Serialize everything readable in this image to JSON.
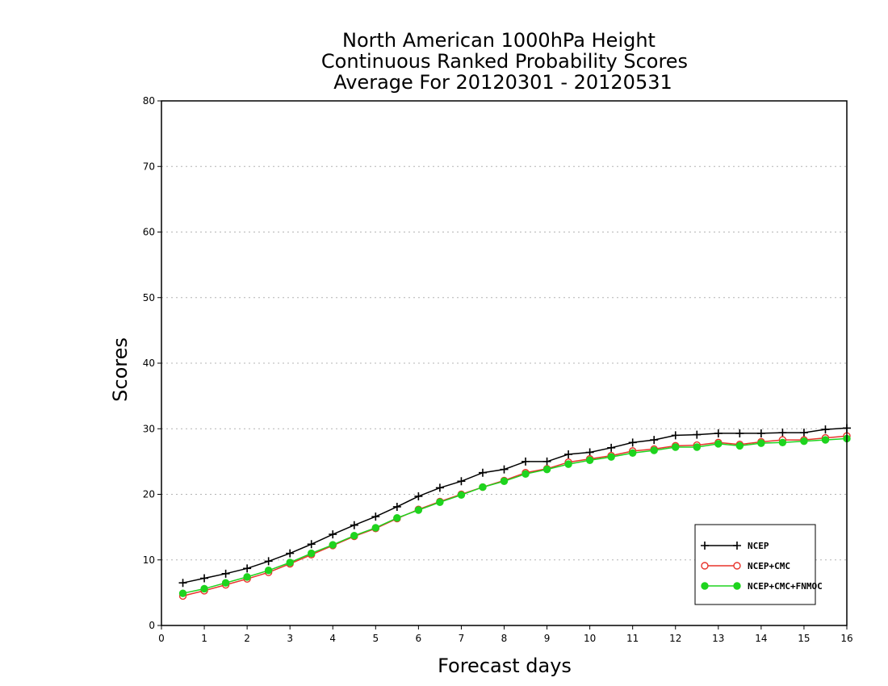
{
  "chart_data": {
    "type": "line",
    "title": [
      "North American 1000hPa Height",
      "Continuous Ranked Probability Scores",
      "Average For 20120301 - 20120531"
    ],
    "xlabel": "Forecast days",
    "ylabel": "Scores",
    "xlim": [
      0,
      16
    ],
    "ylim": [
      0,
      80
    ],
    "xticks": [
      0,
      1,
      2,
      3,
      4,
      5,
      6,
      7,
      8,
      9,
      10,
      11,
      12,
      13,
      14,
      15,
      16
    ],
    "yticks": [
      0,
      10,
      20,
      30,
      40,
      50,
      60,
      70,
      80
    ],
    "grid": "horizontal dotted",
    "legend_position": "bottom-right",
    "x": [
      0.5,
      1,
      1.5,
      2,
      2.5,
      3,
      3.5,
      4,
      4.5,
      5,
      5.5,
      6,
      6.5,
      7,
      7.5,
      8,
      8.5,
      9,
      9.5,
      10,
      10.5,
      11,
      11.5,
      12,
      12.5,
      13,
      13.5,
      14,
      14.5,
      15,
      15.5,
      16
    ],
    "series": [
      {
        "name": "NCEP",
        "color": "#000000",
        "marker": "plus",
        "values": [
          6.5,
          7.2,
          7.9,
          8.7,
          9.8,
          11.0,
          12.4,
          13.9,
          15.3,
          16.6,
          18.1,
          19.7,
          21.0,
          22.0,
          23.3,
          23.8,
          25.0,
          25.0,
          26.1,
          26.4,
          27.1,
          27.9,
          28.3,
          29.0,
          29.1,
          29.3,
          29.3,
          29.3,
          29.4,
          29.4,
          29.9,
          30.1
        ]
      },
      {
        "name": "NCEP+CMC",
        "color": "#e8342c",
        "marker": "open-circle",
        "values": [
          4.5,
          5.3,
          6.2,
          7.1,
          8.1,
          9.4,
          10.8,
          12.2,
          13.6,
          14.8,
          16.3,
          17.7,
          18.9,
          20.0,
          21.1,
          22.1,
          23.3,
          23.9,
          24.9,
          25.4,
          25.9,
          26.6,
          26.9,
          27.4,
          27.5,
          27.9,
          27.6,
          28.0,
          28.3,
          28.3,
          28.6,
          28.9
        ]
      },
      {
        "name": "NCEP+CMC+FNMOC",
        "color": "#1ed41e",
        "marker": "filled-circle",
        "values": [
          4.9,
          5.6,
          6.5,
          7.4,
          8.4,
          9.6,
          11.0,
          12.3,
          13.7,
          14.9,
          16.4,
          17.6,
          18.8,
          19.9,
          21.1,
          22.0,
          23.1,
          23.8,
          24.6,
          25.2,
          25.7,
          26.3,
          26.7,
          27.2,
          27.2,
          27.7,
          27.4,
          27.8,
          27.9,
          28.1,
          28.3,
          28.5
        ]
      }
    ]
  }
}
